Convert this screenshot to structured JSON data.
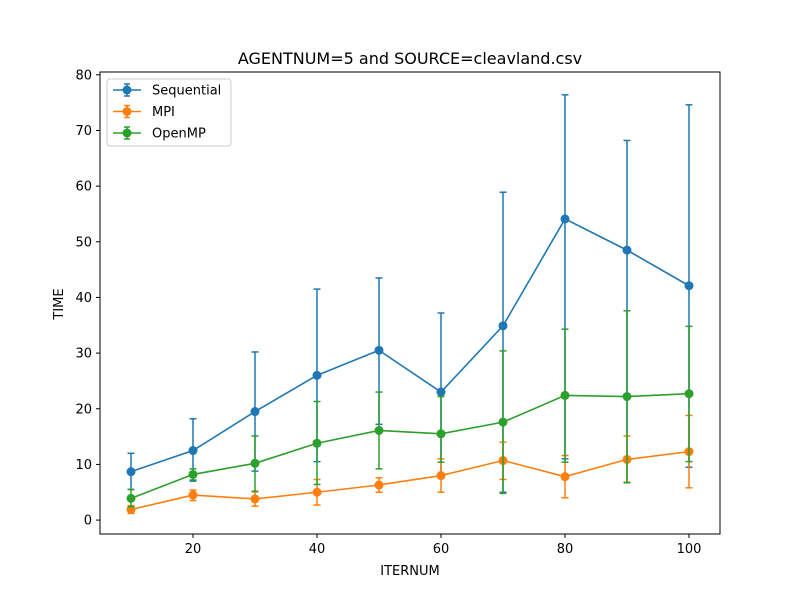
{
  "chart_data": {
    "type": "line",
    "title": "AGENTNUM=5 and SOURCE=cleavland.csv",
    "xlabel": "ITERNUM",
    "ylabel": "TIME",
    "xlim": [
      5,
      105
    ],
    "ylim": [
      -2.5,
      80.5
    ],
    "xticks": [
      20,
      40,
      60,
      80,
      100
    ],
    "yticks": [
      0,
      10,
      20,
      30,
      40,
      50,
      60,
      70,
      80
    ],
    "grid": false,
    "legend_position": "top-left",
    "x": [
      10,
      20,
      30,
      40,
      50,
      60,
      70,
      80,
      90,
      100
    ],
    "series": [
      {
        "name": "Sequential",
        "color": "#1f77b4",
        "values": [
          8.7,
          12.5,
          19.5,
          26.0,
          30.5,
          23.0,
          34.9,
          54.1,
          48.5,
          42.1
        ],
        "err_low": [
          5.5,
          7.0,
          8.8,
          10.5,
          17.2,
          7.5,
          5.0,
          11.0,
          6.8,
          9.5
        ],
        "err_high": [
          12.0,
          18.2,
          30.2,
          41.5,
          43.5,
          37.2,
          58.9,
          76.4,
          68.2,
          74.6
        ]
      },
      {
        "name": "MPI",
        "color": "#ff7f0e",
        "values": [
          1.9,
          4.5,
          3.8,
          5.0,
          6.3,
          8.0,
          10.7,
          7.8,
          10.9,
          12.3
        ],
        "err_low": [
          1.2,
          3.5,
          2.5,
          2.7,
          5.0,
          5.0,
          7.3,
          4.0,
          6.8,
          5.8
        ],
        "err_high": [
          2.6,
          5.4,
          5.2,
          7.3,
          7.6,
          11.0,
          14.0,
          11.6,
          15.1,
          18.8
        ]
      },
      {
        "name": "OpenMP",
        "color": "#2ca02c",
        "values": [
          3.9,
          8.2,
          10.2,
          13.8,
          16.1,
          15.5,
          17.6,
          22.4,
          22.2,
          22.7
        ],
        "err_low": [
          2.4,
          7.2,
          5.1,
          6.4,
          9.2,
          10.4,
          4.8,
          10.4,
          6.7,
          10.5
        ],
        "err_high": [
          5.5,
          9.2,
          15.1,
          21.3,
          23.0,
          22.2,
          30.4,
          34.3,
          37.6,
          34.8
        ]
      }
    ]
  }
}
